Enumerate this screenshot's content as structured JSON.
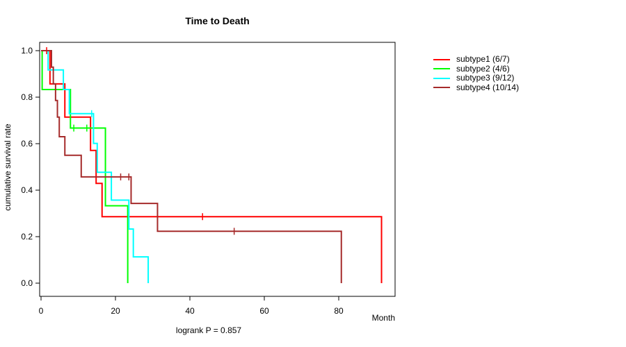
{
  "title": "Time to Death",
  "x_axis": {
    "label": "Month",
    "ticks": [
      {
        "v": 0,
        "label": "0"
      },
      {
        "v": 20,
        "label": "20"
      },
      {
        "v": 40,
        "label": "40"
      },
      {
        "v": 60,
        "label": "60"
      },
      {
        "v": 80,
        "label": "80"
      }
    ]
  },
  "y_axis": {
    "label": "cumulative survival rate",
    "ticks": [
      {
        "v": 0.0,
        "label": "0.0"
      },
      {
        "v": 0.2,
        "label": "0.2"
      },
      {
        "v": 0.4,
        "label": "0.4"
      },
      {
        "v": 0.6,
        "label": "0.6"
      },
      {
        "v": 0.8,
        "label": "0.8"
      },
      {
        "v": 1.0,
        "label": "1.0"
      }
    ]
  },
  "footer": "logrank P = 0.857",
  "legend": {
    "items": [
      {
        "label": "subtype1 (6/7)",
        "color": "#FF0000"
      },
      {
        "label": "subtype2 (4/6)",
        "color": "#00FF00"
      },
      {
        "label": "subtype3 (9/12)",
        "color": "#00FFFF"
      },
      {
        "label": "subtype4 (10/14)",
        "color": "#A52A2A"
      }
    ]
  },
  "chart_data": {
    "type": "line",
    "subtype": "kaplan-meier-step",
    "title": "Time to Death",
    "xlabel": "Month",
    "ylabel": "cumulative survival rate",
    "annotation": "logrank P = 0.857",
    "xlim": [
      0,
      95
    ],
    "ylim": [
      0.0,
      1.0
    ],
    "grid": false,
    "legend_position": "right-outside",
    "series": [
      {
        "name": "subtype1 (6/7)",
        "color": "#FF0000",
        "steps": [
          [
            0,
            1.0
          ],
          [
            2.4,
            0.857
          ],
          [
            6.4,
            0.714
          ],
          [
            13.3,
            0.571
          ],
          [
            14.8,
            0.429
          ],
          [
            16.4,
            0.286
          ],
          [
            91.5,
            0.0
          ]
        ],
        "censor_marks": [
          [
            1.5,
            1.0
          ],
          [
            43.4,
            0.286
          ]
        ]
      },
      {
        "name": "subtype2 (4/6)",
        "color": "#00FF00",
        "steps": [
          [
            0,
            1.0
          ],
          [
            0.3,
            0.833
          ],
          [
            7.9,
            0.667
          ],
          [
            17.3,
            0.333
          ],
          [
            23.3,
            0.0
          ]
        ],
        "censor_marks": [
          [
            8.8,
            0.667
          ],
          [
            12.3,
            0.667
          ]
        ]
      },
      {
        "name": "subtype3 (9/12)",
        "color": "#00FFFF",
        "steps": [
          [
            0,
            1.0
          ],
          [
            1.9,
            0.917
          ],
          [
            6.0,
            0.833
          ],
          [
            7.6,
            0.729
          ],
          [
            14.1,
            0.601
          ],
          [
            15.1,
            0.477
          ],
          [
            18.9,
            0.357
          ],
          [
            23.6,
            0.233
          ],
          [
            24.8,
            0.113
          ],
          [
            28.8,
            0.0
          ]
        ],
        "censor_marks": [
          [
            13.6,
            0.729
          ]
        ]
      },
      {
        "name": "subtype4 (10/14)",
        "color": "#A52A2A",
        "steps": [
          [
            0,
            1.0
          ],
          [
            2.8,
            0.929
          ],
          [
            3.3,
            0.857
          ],
          [
            3.9,
            0.786
          ],
          [
            4.4,
            0.714
          ],
          [
            4.9,
            0.63
          ],
          [
            6.4,
            0.55
          ],
          [
            10.8,
            0.457
          ],
          [
            24.2,
            0.343
          ],
          [
            31.3,
            0.223
          ],
          [
            80.7,
            0.0
          ]
        ],
        "censor_marks": [
          [
            21.4,
            0.457
          ],
          [
            23.6,
            0.457
          ],
          [
            51.9,
            0.223
          ]
        ]
      }
    ]
  }
}
